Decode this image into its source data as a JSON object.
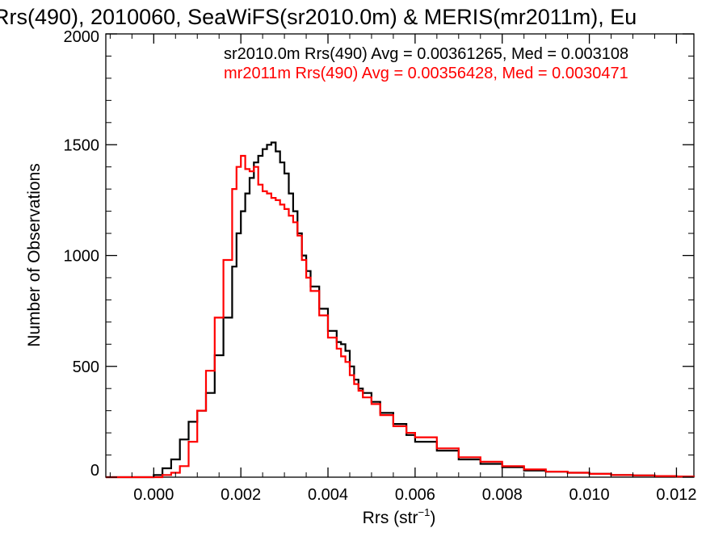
{
  "chart_data": {
    "type": "line",
    "step": true,
    "title": "Rrs(490), 2010060, SeaWiFS(sr2010.0m) & MERIS(mr2011m), Eu",
    "xlabel": "Rrs (str",
    "xlabel_sup": "−1",
    "xlabel_end": ")",
    "ylabel": "Number of Observations",
    "xlim": [
      -0.0011,
      0.0124
    ],
    "ylim": [
      0,
      2000
    ],
    "x_ticks": [
      0.0,
      0.002,
      0.004,
      0.006,
      0.008,
      0.01,
      0.012
    ],
    "x_tick_labels": [
      "0.000",
      "0.002",
      "0.004",
      "0.006",
      "0.008",
      "0.010",
      "0.012"
    ],
    "y_ticks": [
      0,
      500,
      1000,
      1500,
      2000
    ],
    "y_tick_labels": [
      "0",
      "500",
      "1000",
      "1500",
      "2000"
    ],
    "annotations": [
      "sr2010.0m Rrs(490) Avg = 0.00361265, Med = 0.003108",
      "mr2011m Rrs(490) Avg = 0.00356428, Med = 0.0030471"
    ],
    "series": [
      {
        "color": "#000000",
        "x": [
          -0.0011,
          -0.0005,
          0.0,
          0.0002,
          0.0004,
          0.0006,
          0.0008,
          0.001,
          0.0012,
          0.0014,
          0.0016,
          0.0018,
          0.0019,
          0.002,
          0.0021,
          0.0022,
          0.0023,
          0.0024,
          0.0025,
          0.0026,
          0.0027,
          0.0028,
          0.0029,
          0.003,
          0.0031,
          0.0032,
          0.0033,
          0.0034,
          0.0035,
          0.0036,
          0.0038,
          0.004,
          0.0042,
          0.0043,
          0.0044,
          0.0045,
          0.0046,
          0.0047,
          0.0048,
          0.005,
          0.0052,
          0.0055,
          0.0058,
          0.006,
          0.0065,
          0.007,
          0.0075,
          0.008,
          0.0085,
          0.009,
          0.0095,
          0.01,
          0.0105,
          0.011,
          0.0115,
          0.012,
          0.0124
        ],
        "y": [
          0,
          0,
          10,
          40,
          80,
          170,
          250,
          300,
          380,
          550,
          720,
          950,
          1100,
          1200,
          1280,
          1350,
          1420,
          1450,
          1480,
          1500,
          1510,
          1470,
          1420,
          1370,
          1280,
          1200,
          1100,
          1000,
          930,
          860,
          760,
          660,
          610,
          600,
          570,
          500,
          440,
          400,
          380,
          340,
          290,
          240,
          190,
          160,
          120,
          80,
          60,
          45,
          30,
          25,
          20,
          15,
          10,
          8,
          5,
          3,
          2
        ]
      },
      {
        "color": "#ff0000",
        "x": [
          -0.0011,
          -0.0005,
          0.0,
          0.0002,
          0.0004,
          0.0006,
          0.0008,
          0.001,
          0.0012,
          0.0014,
          0.0016,
          0.0018,
          0.0019,
          0.002,
          0.0021,
          0.0022,
          0.0023,
          0.0024,
          0.0025,
          0.0026,
          0.0027,
          0.0028,
          0.0029,
          0.003,
          0.0031,
          0.0032,
          0.0033,
          0.0034,
          0.0035,
          0.0036,
          0.0038,
          0.004,
          0.0042,
          0.0043,
          0.0044,
          0.0045,
          0.0046,
          0.0047,
          0.0048,
          0.005,
          0.0052,
          0.0055,
          0.0058,
          0.006,
          0.0065,
          0.007,
          0.0075,
          0.008,
          0.0085,
          0.009,
          0.0095,
          0.01,
          0.0105,
          0.011,
          0.0115,
          0.012,
          0.0124
        ],
        "y": [
          0,
          0,
          0,
          10,
          20,
          50,
          160,
          300,
          480,
          720,
          980,
          1300,
          1400,
          1450,
          1390,
          1380,
          1400,
          1320,
          1290,
          1280,
          1260,
          1250,
          1230,
          1210,
          1180,
          1150,
          1090,
          980,
          900,
          840,
          730,
          630,
          580,
          545,
          520,
          460,
          420,
          390,
          360,
          330,
          280,
          230,
          200,
          180,
          130,
          90,
          70,
          50,
          35,
          25,
          20,
          15,
          10,
          8,
          5,
          3,
          2
        ]
      }
    ]
  }
}
